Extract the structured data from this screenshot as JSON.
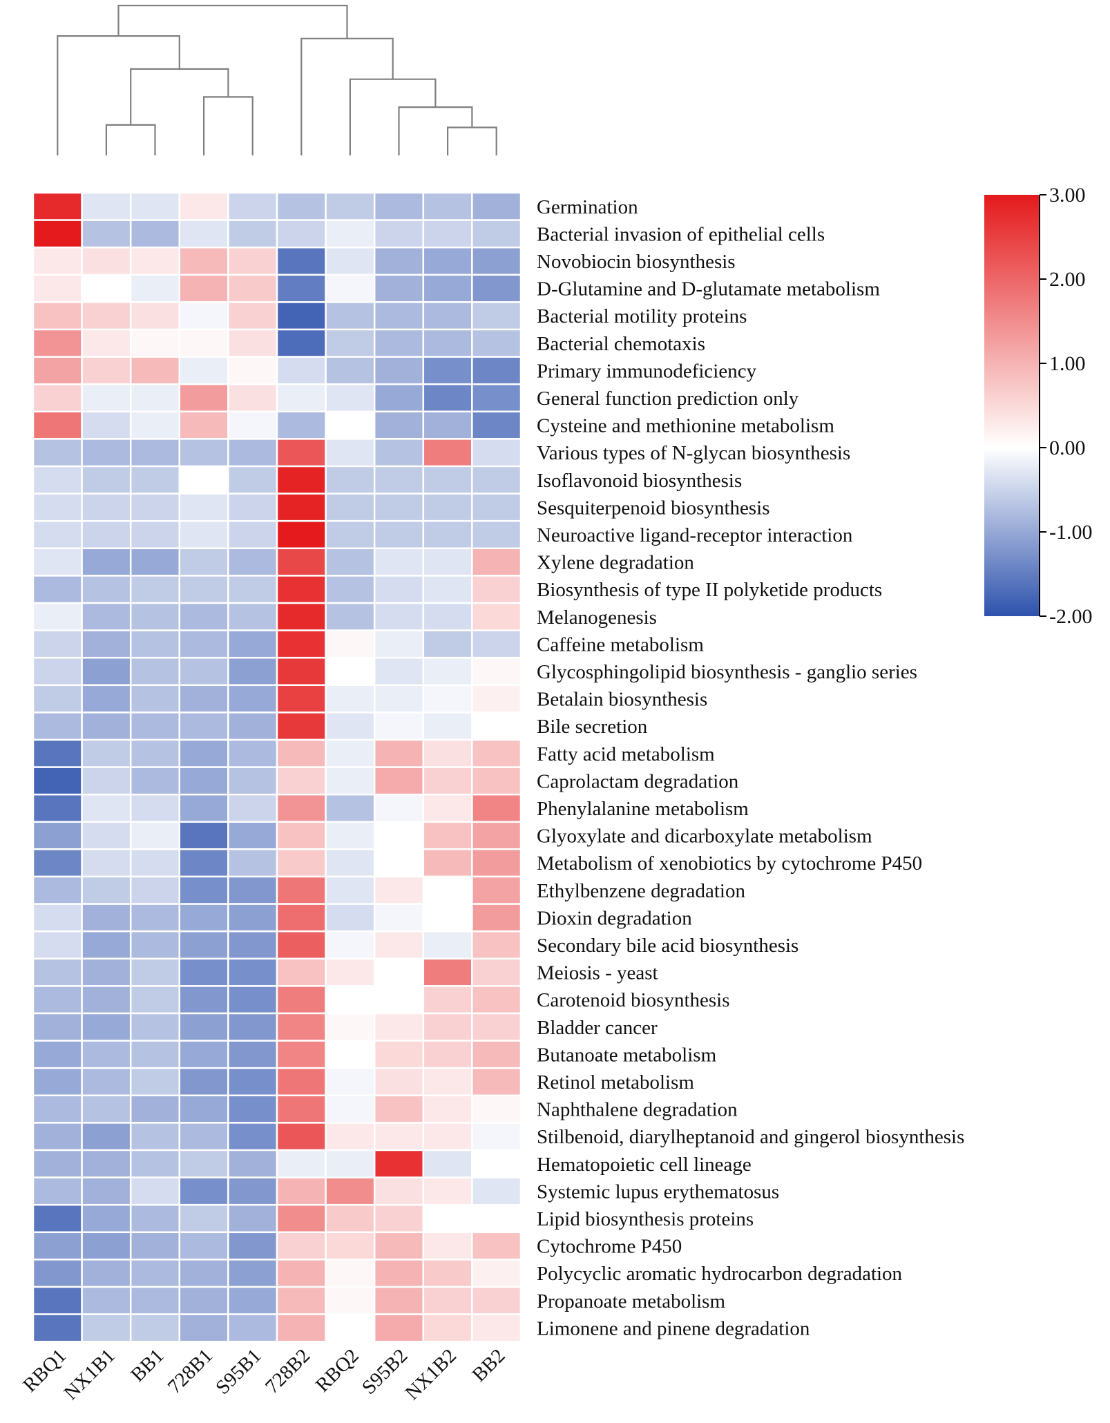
{
  "chart_data": {
    "type": "heatmap",
    "title": "",
    "xlabel": "",
    "ylabel": "",
    "columns": [
      "RBQ1",
      "NX1B1",
      "BB1",
      "728B1",
      "S95B1",
      "728B2",
      "RBQ2",
      "S95B2",
      "NX1B2",
      "BB2"
    ],
    "rows": [
      "Germination",
      "Bacterial invasion of epithelial cells",
      "Novobiocin biosynthesis",
      "D-Glutamine and D-glutamate metabolism",
      "Bacterial motility proteins",
      "Bacterial chemotaxis",
      "Primary immunodeficiency",
      "General function prediction only",
      "Cysteine and methionine metabolism",
      "Various types of N-glycan biosynthesis",
      "Isoflavonoid biosynthesis",
      "Sesquiterpenoid biosynthesis",
      "Neuroactive ligand-receptor interaction",
      "Xylene degradation",
      "Biosynthesis of type II polyketide products",
      "Melanogenesis",
      "Caffeine metabolism",
      "Glycosphingolipid biosynthesis - ganglio series",
      "Betalain biosynthesis",
      "Bile secretion",
      "Fatty acid metabolism",
      "Caprolactam degradation",
      "Phenylalanine metabolism",
      "Glyoxylate and dicarboxylate metabolism",
      "Metabolism of xenobiotics by cytochrome P450",
      "Ethylbenzene degradation",
      "Dioxin degradation",
      "Secondary bile acid biosynthesis",
      "Meiosis - yeast",
      "Carotenoid biosynthesis",
      "Bladder cancer",
      "Butanoate metabolism",
      "Retinol metabolism",
      "Naphthalene degradation",
      "Stilbenoid, diarylheptanoid and gingerol biosynthesis",
      "Hematopoietic cell lineage",
      "Systemic lupus erythematosus",
      "Lipid biosynthesis proteins",
      "Cytochrome P450",
      "Polycyclic aromatic hydrocarbon degradation",
      "Propanoate metabolism",
      "Limonene and pinene degradation"
    ],
    "values": [
      [
        2.8,
        -0.3,
        -0.3,
        0.3,
        -0.5,
        -0.7,
        -0.6,
        -0.8,
        -0.7,
        -0.9
      ],
      [
        3.0,
        -0.7,
        -0.8,
        -0.3,
        -0.6,
        -0.5,
        -0.2,
        -0.5,
        -0.5,
        -0.6
      ],
      [
        0.3,
        0.4,
        0.3,
        0.9,
        0.6,
        -1.6,
        -0.3,
        -0.9,
        -1.0,
        -1.1
      ],
      [
        0.3,
        0.0,
        -0.2,
        1.0,
        0.7,
        -1.5,
        -0.1,
        -0.9,
        -1.0,
        -1.2
      ],
      [
        0.8,
        0.6,
        0.4,
        -0.1,
        0.6,
        -1.8,
        -0.7,
        -0.8,
        -0.8,
        -0.6
      ],
      [
        1.4,
        0.3,
        0.1,
        0.1,
        0.4,
        -1.7,
        -0.6,
        -0.8,
        -0.8,
        -0.7
      ],
      [
        1.2,
        0.6,
        0.9,
        -0.2,
        0.1,
        -0.4,
        -0.7,
        -0.9,
        -1.3,
        -1.4
      ],
      [
        0.6,
        -0.2,
        -0.2,
        1.3,
        0.4,
        -0.2,
        -0.3,
        -1.0,
        -1.4,
        -1.3
      ],
      [
        1.8,
        -0.4,
        -0.2,
        0.9,
        -0.1,
        -0.8,
        0.0,
        -0.9,
        -0.9,
        -1.4
      ],
      [
        -0.7,
        -0.8,
        -0.8,
        -0.7,
        -0.8,
        2.2,
        -0.3,
        -0.7,
        1.7,
        -0.4
      ],
      [
        -0.4,
        -0.6,
        -0.6,
        0.0,
        -0.6,
        2.9,
        -0.6,
        -0.6,
        -0.6,
        -0.6
      ],
      [
        -0.4,
        -0.5,
        -0.5,
        -0.3,
        -0.5,
        2.9,
        -0.6,
        -0.6,
        -0.6,
        -0.6
      ],
      [
        -0.4,
        -0.5,
        -0.5,
        -0.3,
        -0.5,
        3.0,
        -0.6,
        -0.6,
        -0.6,
        -0.6
      ],
      [
        -0.3,
        -1.0,
        -1.0,
        -0.6,
        -0.8,
        2.4,
        -0.7,
        -0.3,
        -0.3,
        1.0
      ],
      [
        -0.8,
        -0.7,
        -0.6,
        -0.6,
        -0.6,
        2.7,
        -0.7,
        -0.4,
        -0.3,
        0.6
      ],
      [
        -0.2,
        -0.8,
        -0.7,
        -0.8,
        -0.7,
        2.8,
        -0.7,
        -0.4,
        -0.4,
        0.5
      ],
      [
        -0.5,
        -0.9,
        -0.7,
        -0.8,
        -1.0,
        2.7,
        0.1,
        -0.2,
        -0.6,
        -0.5
      ],
      [
        -0.5,
        -1.1,
        -0.7,
        -0.7,
        -1.1,
        2.6,
        0.0,
        -0.3,
        -0.2,
        0.1
      ],
      [
        -0.6,
        -1.0,
        -0.7,
        -0.9,
        -1.0,
        2.5,
        -0.2,
        -0.2,
        -0.1,
        0.2
      ],
      [
        -0.8,
        -0.9,
        -0.8,
        -0.8,
        -0.9,
        2.6,
        -0.3,
        -0.1,
        -0.2,
        0.0
      ],
      [
        -1.6,
        -0.6,
        -0.7,
        -1.0,
        -0.8,
        0.9,
        -0.2,
        1.0,
        0.4,
        0.8
      ],
      [
        -1.8,
        -0.5,
        -0.8,
        -1.0,
        -0.7,
        0.6,
        -0.2,
        1.1,
        0.6,
        0.8
      ],
      [
        -1.6,
        -0.3,
        -0.4,
        -1.0,
        -0.5,
        1.4,
        -0.7,
        -0.1,
        0.3,
        1.6
      ],
      [
        -1.1,
        -0.4,
        -0.2,
        -1.6,
        -1.0,
        0.8,
        -0.2,
        0.0,
        0.8,
        1.2
      ],
      [
        -1.4,
        -0.4,
        -0.4,
        -1.4,
        -0.7,
        0.7,
        -0.3,
        0.0,
        0.9,
        1.3
      ],
      [
        -0.8,
        -0.6,
        -0.5,
        -1.3,
        -1.2,
        1.8,
        -0.3,
        0.3,
        0.0,
        1.2
      ],
      [
        -0.4,
        -0.9,
        -0.8,
        -1.0,
        -1.1,
        1.9,
        -0.4,
        -0.1,
        0.0,
        1.3
      ],
      [
        -0.4,
        -1.0,
        -0.8,
        -1.1,
        -1.2,
        2.1,
        -0.1,
        0.3,
        -0.2,
        0.8
      ],
      [
        -0.7,
        -0.9,
        -0.6,
        -1.3,
        -1.3,
        0.8,
        0.3,
        0.0,
        1.7,
        0.6
      ],
      [
        -0.8,
        -0.9,
        -0.6,
        -1.2,
        -1.3,
        1.7,
        0.0,
        0.0,
        0.6,
        0.8
      ],
      [
        -0.9,
        -1.0,
        -0.7,
        -1.1,
        -1.2,
        1.6,
        0.1,
        0.3,
        0.6,
        0.6
      ],
      [
        -1.0,
        -0.8,
        -0.7,
        -1.0,
        -1.2,
        1.6,
        0.0,
        0.5,
        0.6,
        0.9
      ],
      [
        -1.0,
        -0.8,
        -0.6,
        -1.2,
        -1.3,
        1.8,
        -0.1,
        0.4,
        0.3,
        0.9
      ],
      [
        -0.8,
        -0.7,
        -0.9,
        -1.0,
        -1.3,
        1.8,
        -0.1,
        0.8,
        0.3,
        0.1
      ],
      [
        -0.9,
        -1.1,
        -0.7,
        -0.8,
        -1.3,
        2.2,
        0.3,
        0.3,
        0.3,
        -0.1
      ],
      [
        -0.9,
        -0.9,
        -0.7,
        -0.6,
        -0.9,
        -0.2,
        -0.2,
        2.7,
        -0.3,
        0.0
      ],
      [
        -0.8,
        -0.9,
        -0.4,
        -1.3,
        -1.2,
        1.0,
        1.5,
        0.4,
        0.3,
        -0.3
      ],
      [
        -1.6,
        -1.0,
        -0.8,
        -0.6,
        -0.9,
        1.5,
        0.7,
        0.6,
        0.0,
        0.0
      ],
      [
        -1.1,
        -1.1,
        -0.9,
        -0.8,
        -1.2,
        0.6,
        0.5,
        0.9,
        0.3,
        0.8
      ],
      [
        -1.2,
        -0.9,
        -0.8,
        -0.9,
        -1.1,
        1.0,
        0.1,
        1.0,
        0.7,
        0.2
      ],
      [
        -1.6,
        -0.8,
        -0.8,
        -0.9,
        -1.0,
        0.9,
        0.1,
        1.0,
        0.6,
        0.6
      ],
      [
        -1.6,
        -0.6,
        -0.6,
        -0.9,
        -0.8,
        1.0,
        0.0,
        1.1,
        0.5,
        0.3
      ]
    ],
    "dendrogram": {
      "merges": [
        [
          1,
          2
        ],
        [
          3,
          4
        ],
        [
          8,
          9
        ],
        [
          7,
          "c"
        ],
        [
          6,
          "d"
        ],
        [
          "a",
          "b"
        ],
        [
          0,
          "f"
        ],
        [
          5,
          "e"
        ],
        [
          "g",
          "h"
        ]
      ],
      "heights": [
        0.6,
        1.15,
        0.55,
        0.95,
        1.5,
        1.7,
        2.35,
        2.3,
        2.95
      ]
    },
    "colorbar": {
      "min": -2.0,
      "max": 3.0,
      "ticks": [
        "3.00",
        "2.00",
        "1.00",
        "0.00",
        "-1.00",
        "-2.00"
      ],
      "colors": {
        "low": "#2e52ad",
        "mid": "#ffffff",
        "high": "#e41a1c"
      }
    }
  }
}
